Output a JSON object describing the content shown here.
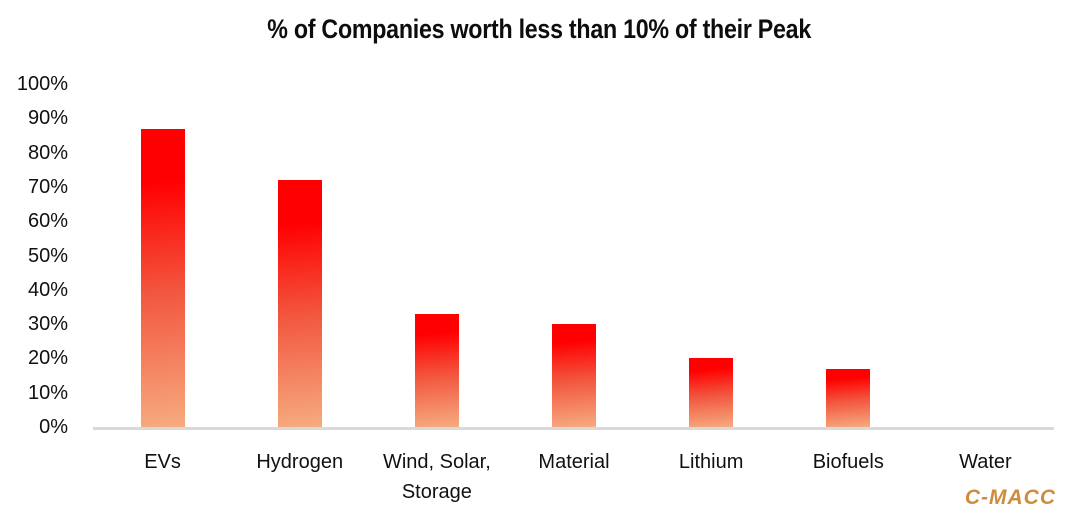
{
  "title": "% of Companies worth less than 10% of their Peak",
  "brand": "C-MACC",
  "colors": {
    "bar_top": "#ff0000",
    "bar_mid": "#f2573f",
    "bar_bottom": "#f6ab80",
    "axis_line": "#d9d9d9",
    "brand_color": "#ce8d3e",
    "text": "#111111"
  },
  "chart_data": {
    "type": "bar",
    "title": "% of Companies worth less than 10% of their Peak",
    "categories": [
      "EVs",
      "Hydrogen",
      "Wind, Solar, Storage",
      "Material",
      "Lithium",
      "Biofuels",
      "Water"
    ],
    "values": [
      87,
      72,
      33,
      30,
      20,
      17,
      0
    ],
    "unit": "%",
    "xlabel": "",
    "ylabel": "",
    "ylim": [
      0,
      100
    ],
    "ytick_step": 10,
    "ytick_labels": [
      "100%",
      "90%",
      "80%",
      "70%",
      "60%",
      "50%",
      "40%",
      "30%",
      "20%",
      "10%",
      "0%"
    ],
    "grid": false,
    "legend": false,
    "bar_color_gradient": [
      "#ff0000",
      "#f6ab80"
    ]
  }
}
